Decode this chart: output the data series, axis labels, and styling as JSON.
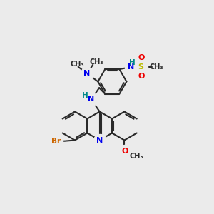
{
  "bg": "#ebebeb",
  "bc": "#2a2a2a",
  "Nc": "#0000ee",
  "Oc": "#ee0000",
  "Sc": "#bbbb00",
  "Brc": "#cc6600",
  "Hc": "#008888",
  "lw": 1.5,
  "dpi": 100,
  "figsize": [
    3.0,
    3.0
  ],
  "xlim": [
    0,
    10
  ],
  "ylim": [
    0,
    10
  ]
}
